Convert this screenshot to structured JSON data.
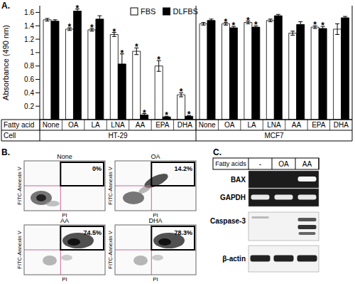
{
  "chart_data": {
    "type": "bar",
    "panel_label": "A.",
    "y_label": "Absorbance (490 nm)",
    "category_label": "Fatty acid",
    "group_label": "Cell",
    "categories": [
      "None",
      "OA",
      "LA",
      "LNA",
      "AA",
      "EPA",
      "DHA",
      "None",
      "OA",
      "LA",
      "LNA",
      "AA",
      "EPA",
      "DHA"
    ],
    "groups": [
      "HT-29",
      "HT-29",
      "HT-29",
      "HT-29",
      "HT-29",
      "HT-29",
      "HT-29",
      "MCF7",
      "MCF7",
      "MCF7",
      "MCF7",
      "MCF7",
      "MCF7",
      "MCF7"
    ],
    "ylim": [
      0,
      1.7
    ],
    "yticks": [
      0,
      0.2,
      0.4,
      0.6,
      0.8,
      1,
      1.2,
      1.4,
      1.6
    ],
    "legend": "top",
    "series": [
      {
        "name": "FBS",
        "color": "#ffffff",
        "values": [
          1.49,
          1.35,
          1.34,
          1.27,
          1.02,
          0.8,
          0.37,
          1.43,
          1.43,
          1.45,
          1.48,
          1.29,
          1.38,
          1.35
        ],
        "errors": [
          0.02,
          0.02,
          0.02,
          0.03,
          0.05,
          0.08,
          0.03,
          0.02,
          0.02,
          0.02,
          0.02,
          0.03,
          0.02,
          0.08
        ],
        "annotations": [
          null,
          "*",
          "*",
          "*",
          "*",
          "*",
          "*",
          null,
          "*",
          "*",
          null,
          null,
          "*",
          null
        ]
      },
      {
        "name": "DLFBS",
        "color": "#000000",
        "values": [
          1.47,
          1.62,
          1.5,
          0.83,
          0.07,
          0.04,
          0.05,
          1.48,
          1.37,
          1.38,
          1.55,
          1.42,
          1.36,
          1.52
        ],
        "errors": [
          0.02,
          0.03,
          0.05,
          0.15,
          0.02,
          0.01,
          0.01,
          0.02,
          0.02,
          0.02,
          0.02,
          0.04,
          0.03,
          0.02
        ],
        "annotations": [
          null,
          "*",
          null,
          "*",
          "*",
          "*",
          "*",
          null,
          "*",
          "*",
          null,
          null,
          "*",
          null
        ]
      }
    ]
  },
  "panel_b": {
    "label": "B.",
    "y_label": "FITC-Annexin V",
    "x_label": "PI",
    "plots": [
      {
        "title": "None",
        "gate": "0%"
      },
      {
        "title": "OA",
        "gate": "14.2%"
      },
      {
        "title": "AA",
        "gate": "74.5%"
      },
      {
        "title": "DHA",
        "gate": "78.3%"
      }
    ]
  },
  "panel_c": {
    "label": "C.",
    "header": "Fatty acids",
    "lanes": [
      "-",
      "OA",
      "AA"
    ],
    "rows": [
      "BAX",
      "GAPDH",
      "Caspase-3",
      "β-actin"
    ]
  }
}
